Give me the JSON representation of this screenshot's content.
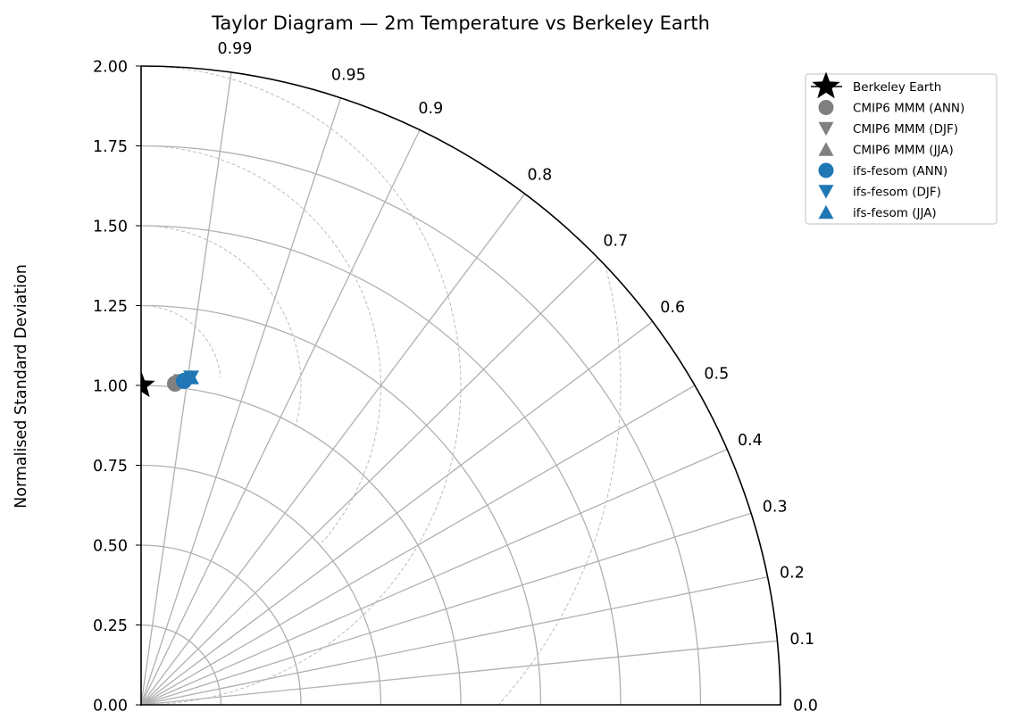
{
  "chart_data": {
    "type": "taylor",
    "title": "Taylor Diagram — 2m Temperature vs Berkeley Earth",
    "ylabel": "Normalised Standard Deviation",
    "xlabel": "",
    "std_ticks": [
      "0.00",
      "0.25",
      "0.50",
      "0.75",
      "1.00",
      "1.25",
      "1.50",
      "1.75",
      "2.00"
    ],
    "std_range": [
      0,
      2.0
    ],
    "std_gridlines": [
      0.25,
      0.5,
      0.75,
      1.0,
      1.25,
      1.5,
      1.75
    ],
    "correlation_ticks": [
      0.0,
      0.1,
      0.2,
      0.3,
      0.4,
      0.5,
      0.6,
      0.7,
      0.8,
      0.9,
      0.95,
      0.99
    ],
    "correlation_tick_labels": [
      "0.0",
      "0.1",
      "0.2",
      "0.3",
      "0.4",
      "0.5",
      "0.6",
      "0.7",
      "0.8",
      "0.9",
      "0.95",
      "0.99"
    ],
    "rms_contours": [
      0.25,
      0.5,
      0.75,
      1.0,
      1.5
    ],
    "grid": true,
    "legend_position": "upper right, outside",
    "reference": {
      "name": "Berkeley Earth",
      "std": 1.0,
      "corr": 1.0,
      "marker": "star",
      "color": "#000000"
    },
    "series": [
      {
        "name": "CMIP6 MMM (ANN)",
        "std": 1.01,
        "corr": 0.995,
        "marker": "circle",
        "color": "#808080"
      },
      {
        "name": "CMIP6 MMM (DJF)",
        "std": 1.02,
        "corr": 0.993,
        "marker": "triangle-down",
        "color": "#808080"
      },
      {
        "name": "CMIP6 MMM (JJA)",
        "std": 1.02,
        "corr": 0.993,
        "marker": "triangle-up",
        "color": "#808080"
      },
      {
        "name": "ifs-fesom (ANN)",
        "std": 1.02,
        "corr": 0.991,
        "marker": "circle",
        "color": "#1f77b4"
      },
      {
        "name": "ifs-fesom (DJF)",
        "std": 1.04,
        "corr": 0.988,
        "marker": "triangle-down",
        "color": "#1f77b4"
      },
      {
        "name": "ifs-fesom (JJA)",
        "std": 1.04,
        "corr": 0.988,
        "marker": "triangle-up",
        "color": "#1f77b4"
      }
    ]
  },
  "legend": {
    "items": [
      {
        "label": "Berkeley Earth"
      },
      {
        "label": "CMIP6 MMM (ANN)"
      },
      {
        "label": "CMIP6 MMM (DJF)"
      },
      {
        "label": "CMIP6 MMM (JJA)"
      },
      {
        "label": "ifs-fesom (ANN)"
      },
      {
        "label": "ifs-fesom (DJF)"
      },
      {
        "label": "ifs-fesom (JJA)"
      }
    ]
  },
  "colors": {
    "reference": "#000000",
    "cmip6": "#808080",
    "ifs": "#1f77b4",
    "grid": "#b0b0b0"
  }
}
